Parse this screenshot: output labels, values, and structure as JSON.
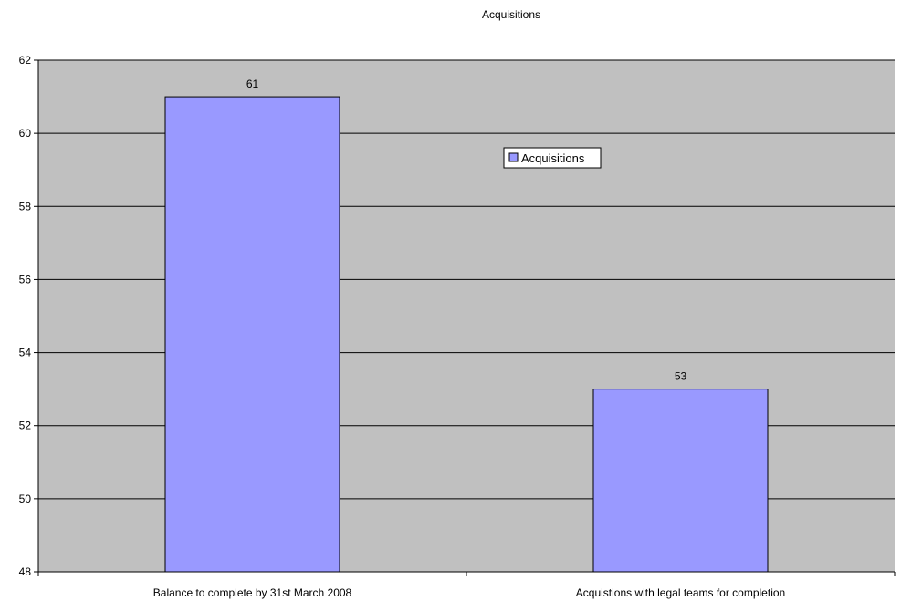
{
  "chart_data": {
    "type": "bar",
    "title": "Acquisitions",
    "categories": [
      "Balance to complete by 31st March 2008",
      "Acquistions with legal teams for completion"
    ],
    "series": [
      {
        "name": "Acquisitions",
        "values": [
          61,
          53
        ],
        "color": "#9999ff"
      }
    ],
    "data_labels": [
      "61",
      "53"
    ],
    "ylim": [
      48,
      62
    ],
    "yticks": [
      48,
      50,
      52,
      54,
      56,
      58,
      60,
      62
    ],
    "xlabel": "",
    "ylabel": "",
    "grid": true,
    "legend_position": "inside-top-right",
    "plot_background": "#c0c0c0",
    "gridline_color": "#000000"
  }
}
